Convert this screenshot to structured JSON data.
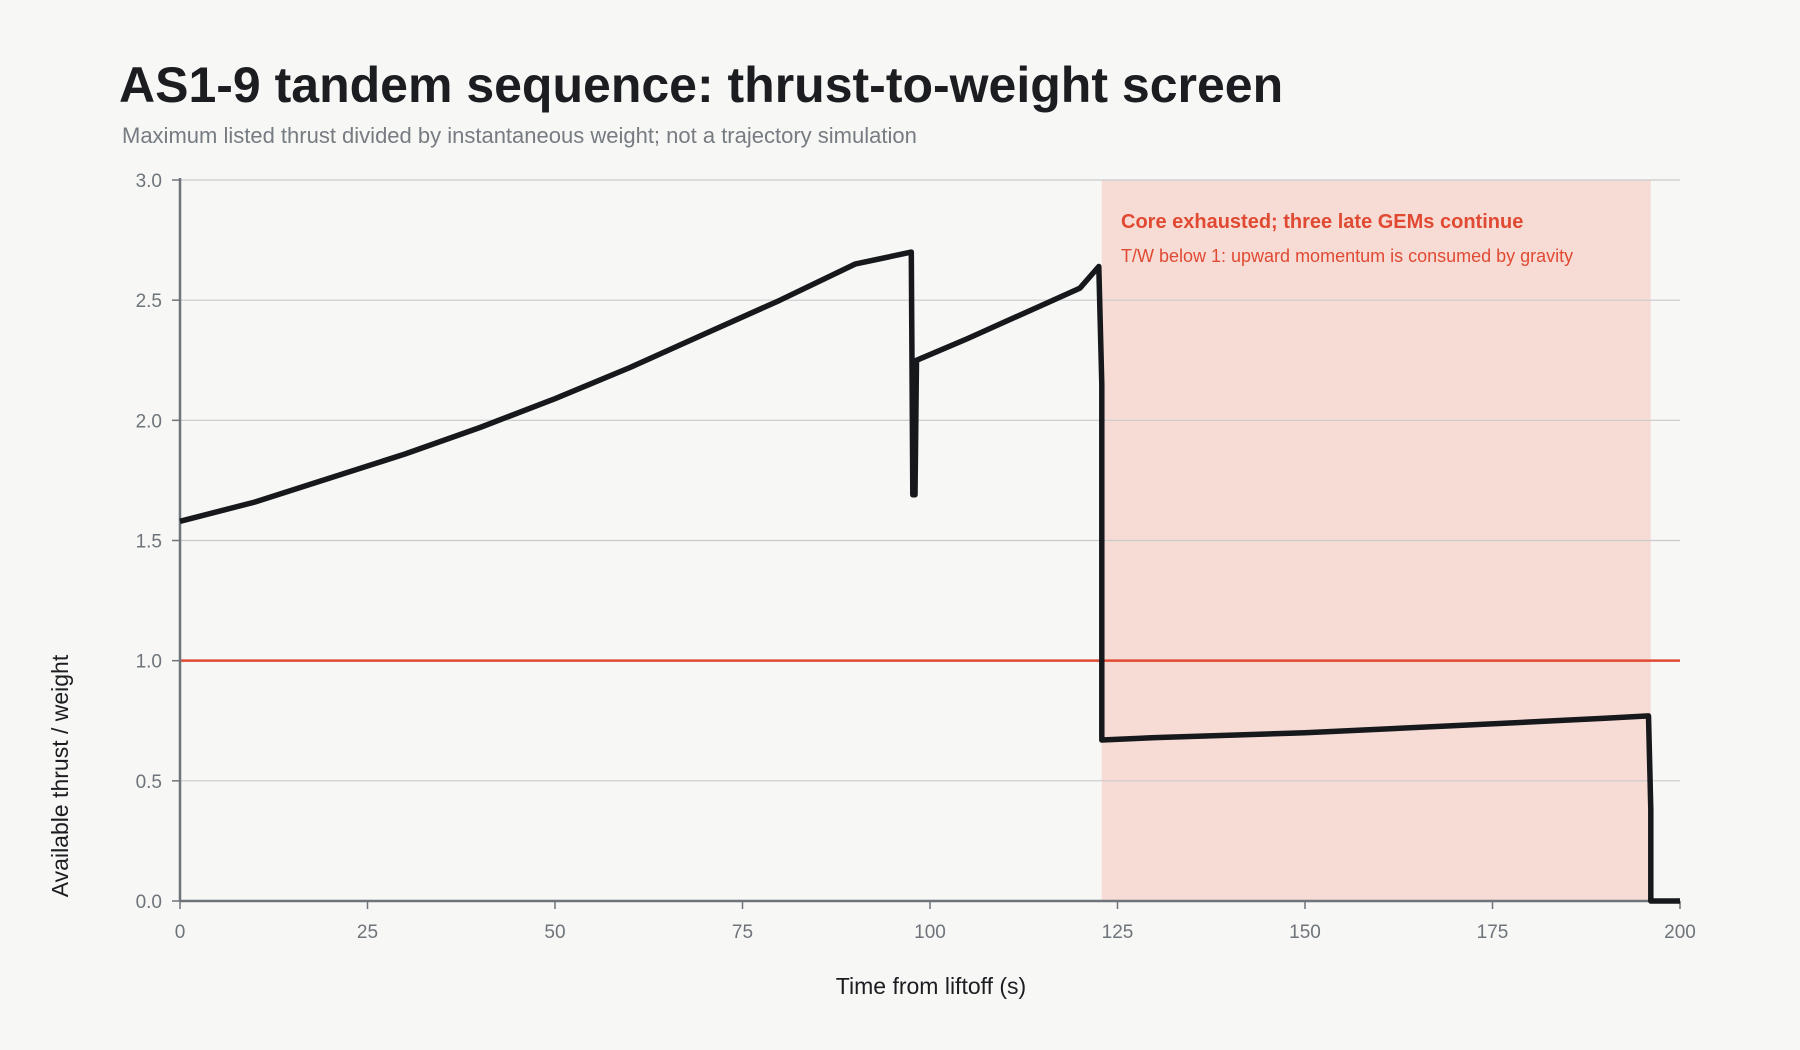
{
  "title": "AS1-9 tandem sequence: thrust-to-weight screen",
  "subtitle": "Maximum listed thrust divided by instantaneous weight; not a trajectory simulation",
  "colors": {
    "background": "#f7f7f5",
    "series": "#16181b",
    "reference_line": "#e04a33",
    "highlight_region": "#f7dcd6",
    "annotation": "#e04a33",
    "grid": "#c8cacb",
    "axis": "#6e747a"
  },
  "annotation": {
    "title": "Core exhausted; three late GEMs continue",
    "subtitle": "T/W below 1: upward momentum is consumed by gravity"
  },
  "chart_data": {
    "type": "line",
    "xlabel": "Time from liftoff (s)",
    "ylabel": "Available thrust / weight",
    "xlim": [
      0,
      200
    ],
    "ylim": [
      0,
      3.0
    ],
    "x_ticks": [
      0,
      25,
      50,
      75,
      100,
      125,
      150,
      175,
      200
    ],
    "y_ticks": [
      "0.0",
      "0.5",
      "1.0",
      "1.5",
      "2.0",
      "2.5",
      "3.0"
    ],
    "grid": "horizontal",
    "reference_line": {
      "y": 1.0
    },
    "highlight_region": {
      "x_start": 122.9,
      "x_end": 196.1
    },
    "series": [
      {
        "points": [
          [
            0,
            1.58
          ],
          [
            10,
            1.66
          ],
          [
            20,
            1.76
          ],
          [
            30,
            1.86
          ],
          [
            40,
            1.97
          ],
          [
            50,
            2.09
          ],
          [
            60,
            2.22
          ],
          [
            70,
            2.36
          ],
          [
            80,
            2.5
          ],
          [
            90,
            2.65
          ],
          [
            97.5,
            2.7
          ],
          [
            97.7,
            1.69
          ],
          [
            98.0,
            1.69
          ],
          [
            98.2,
            2.25
          ],
          [
            105,
            2.34
          ],
          [
            110,
            2.41
          ],
          [
            115,
            2.48
          ],
          [
            120,
            2.55
          ],
          [
            122.5,
            2.64
          ],
          [
            122.9,
            2.15
          ],
          [
            122.9,
            0.67
          ],
          [
            130,
            0.68
          ],
          [
            150,
            0.7
          ],
          [
            170,
            0.73
          ],
          [
            190,
            0.76
          ],
          [
            195.8,
            0.77
          ],
          [
            196.1,
            0.38
          ],
          [
            196.1,
            0.0
          ],
          [
            200,
            0.0
          ]
        ]
      }
    ]
  }
}
